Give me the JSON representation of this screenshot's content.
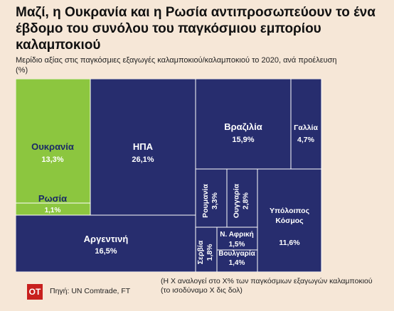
{
  "header": {
    "title": "Μαζί, η Ουκρανία και η Ρωσία αντιπροσωπεύουν το ένα έβδομο του συνόλου του παγκόσμιου εμπορίου καλαμποκιού",
    "subtitle": "Μερίδιο αξίας στις παγκόσμιες εξαγωγές καλαμποκιού/καλαμποκιού το 2020, ανά προέλευση (%)"
  },
  "chart_data": {
    "type": "treemap",
    "unit": "%",
    "items": [
      {
        "name": "Ουκρανία",
        "value": 13.3,
        "label": "13,3%",
        "color": "#8cc63f"
      },
      {
        "name": "Ρωσία",
        "value": 1.1,
        "label": "1,1%",
        "color": "#8cc63f"
      },
      {
        "name": "ΗΠΑ",
        "value": 26.1,
        "label": "26,1%",
        "color": "#272d6e"
      },
      {
        "name": "Αργεντινή",
        "value": 16.5,
        "label": "16,5%",
        "color": "#272d6e"
      },
      {
        "name": "Βραζιλία",
        "value": 15.9,
        "label": "15,9%",
        "color": "#272d6e"
      },
      {
        "name": "Γαλλία",
        "value": 4.7,
        "label": "4,7%",
        "color": "#272d6e"
      },
      {
        "name": "Ρουμανία",
        "value": 3.3,
        "label": "3,3%",
        "color": "#272d6e"
      },
      {
        "name": "Ουγγαρία",
        "value": 2.8,
        "label": "2,8%",
        "color": "#272d6e"
      },
      {
        "name": "Υπόλοιπος Κόσμος",
        "value": 11.6,
        "label": "11,6%",
        "color": "#272d6e"
      },
      {
        "name": "Σερβία",
        "value": 1.8,
        "label": "1,8%",
        "color": "#272d6e"
      },
      {
        "name": "Ν. Αφρική",
        "value": 1.5,
        "label": "1,5%",
        "color": "#272d6e"
      },
      {
        "name": "Βουλγαρία",
        "value": 1.4,
        "label": "1,4%",
        "color": "#272d6e"
      }
    ]
  },
  "footer": {
    "logo": "ΟΤ",
    "source": "Πηγή: UN Comtrade, FT",
    "note": "(Η Χ αναλογεί στο Χ% των παγκόσμιων εξαγωγών καλαμποκιού (το ισοδύναμο Χ δις δολ)"
  },
  "colors": {
    "background": "#f6e7d7",
    "navy": "#272d6e",
    "green": "#8cc63f",
    "logo_red": "#c8201e"
  }
}
